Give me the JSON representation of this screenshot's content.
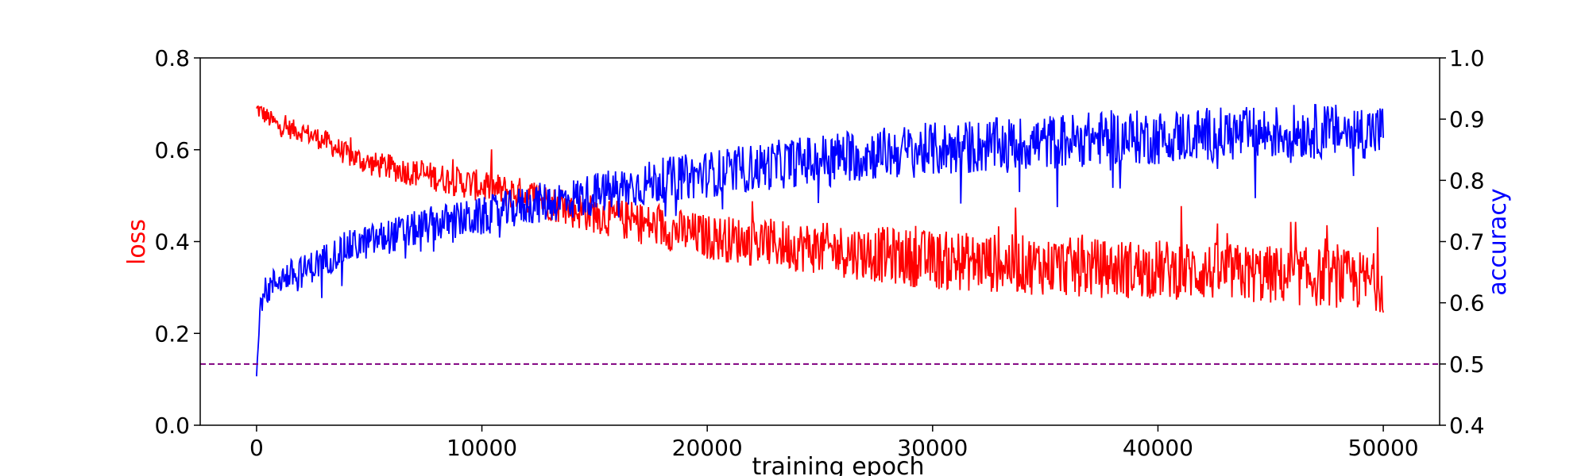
{
  "chart_data": {
    "type": "line",
    "title": "",
    "xlabel": "training epoch",
    "ylabel_left": "loss",
    "ylabel_right": "accuracy",
    "xlim": [
      -2500,
      52500
    ],
    "ylim_left": [
      0.0,
      0.8
    ],
    "ylim_right": [
      0.4,
      1.0
    ],
    "x_ticks": [
      0,
      10000,
      20000,
      30000,
      40000,
      50000
    ],
    "y_ticks_left": [
      0.0,
      0.2,
      0.4,
      0.6,
      0.8
    ],
    "y_ticks_right": [
      0.4,
      0.5,
      0.6,
      0.7,
      0.8,
      0.9,
      1.0
    ],
    "grid": false,
    "reference_line": {
      "axis": "right",
      "value": 0.5,
      "color": "#800080",
      "style": "dashed"
    },
    "series": [
      {
        "axis": "left",
        "color": "#ff0000",
        "x": [
          0,
          1000,
          2000,
          3000,
          4000,
          5000,
          6000,
          7000,
          8000,
          9000,
          10000,
          12000,
          14000,
          16000,
          18000,
          20000,
          22000,
          24000,
          26000,
          28000,
          30000,
          32000,
          34000,
          36000,
          38000,
          40000,
          42000,
          44000,
          46000,
          48000,
          50000
        ],
        "y": [
          0.69,
          0.65,
          0.64,
          0.62,
          0.59,
          0.57,
          0.56,
          0.55,
          0.54,
          0.53,
          0.52,
          0.5,
          0.47,
          0.45,
          0.43,
          0.41,
          0.4,
          0.39,
          0.38,
          0.37,
          0.36,
          0.355,
          0.35,
          0.345,
          0.34,
          0.34,
          0.335,
          0.33,
          0.325,
          0.32,
          0.31
        ]
      },
      {
        "axis": "right",
        "color": "#0000ff",
        "x": [
          0,
          200,
          1000,
          2000,
          3000,
          4000,
          5000,
          6000,
          7000,
          8000,
          9000,
          10000,
          12000,
          14000,
          16000,
          18000,
          20000,
          22000,
          24000,
          26000,
          28000,
          30000,
          32000,
          34000,
          36000,
          38000,
          40000,
          42000,
          44000,
          46000,
          48000,
          50000
        ],
        "y": [
          0.48,
          0.61,
          0.64,
          0.65,
          0.67,
          0.69,
          0.7,
          0.71,
          0.72,
          0.73,
          0.735,
          0.74,
          0.76,
          0.77,
          0.785,
          0.8,
          0.81,
          0.82,
          0.83,
          0.84,
          0.845,
          0.85,
          0.855,
          0.86,
          0.865,
          0.87,
          0.87,
          0.875,
          0.875,
          0.88,
          0.88,
          0.88
        ]
      }
    ]
  }
}
